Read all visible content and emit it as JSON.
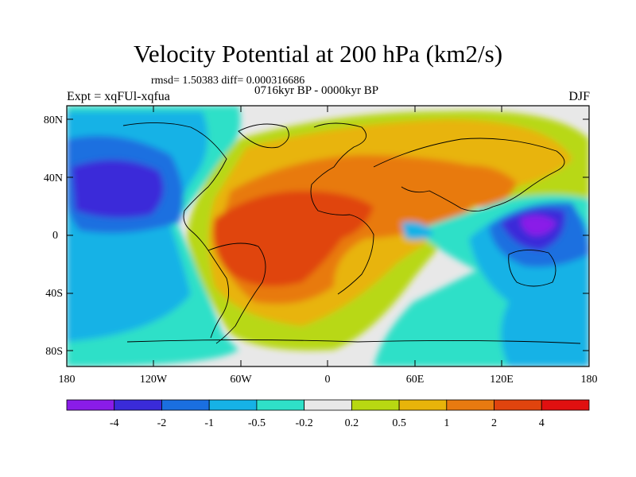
{
  "title": "Velocity Potential at 200 hPa (km2/s)",
  "stats": "rmsd= 1.50383  diff= 0.000316686",
  "period": "0716kyr BP - 0000kyr BP",
  "left_label": "Expt = xqFUl-xqfua",
  "right_label": "DJF",
  "lat_labels": [
    "80N",
    "40N",
    "0",
    "40S",
    "80S"
  ],
  "lon_labels": [
    "180",
    "120W",
    "60W",
    "0",
    "60E",
    "120E",
    "180"
  ],
  "colorbar": {
    "colors": [
      "#8a1ce8",
      "#3a2bd9",
      "#1a6fe0",
      "#16b2e6",
      "#2fe0c8",
      "#e8e8e8",
      "#b8d812",
      "#e8b40a",
      "#e87a10",
      "#e0440e",
      "#e01010"
    ],
    "labels": [
      "-4",
      "-2",
      "-1",
      "-0.5",
      "-0.2",
      "0.2",
      "0.5",
      "1",
      "2",
      "4"
    ]
  }
}
